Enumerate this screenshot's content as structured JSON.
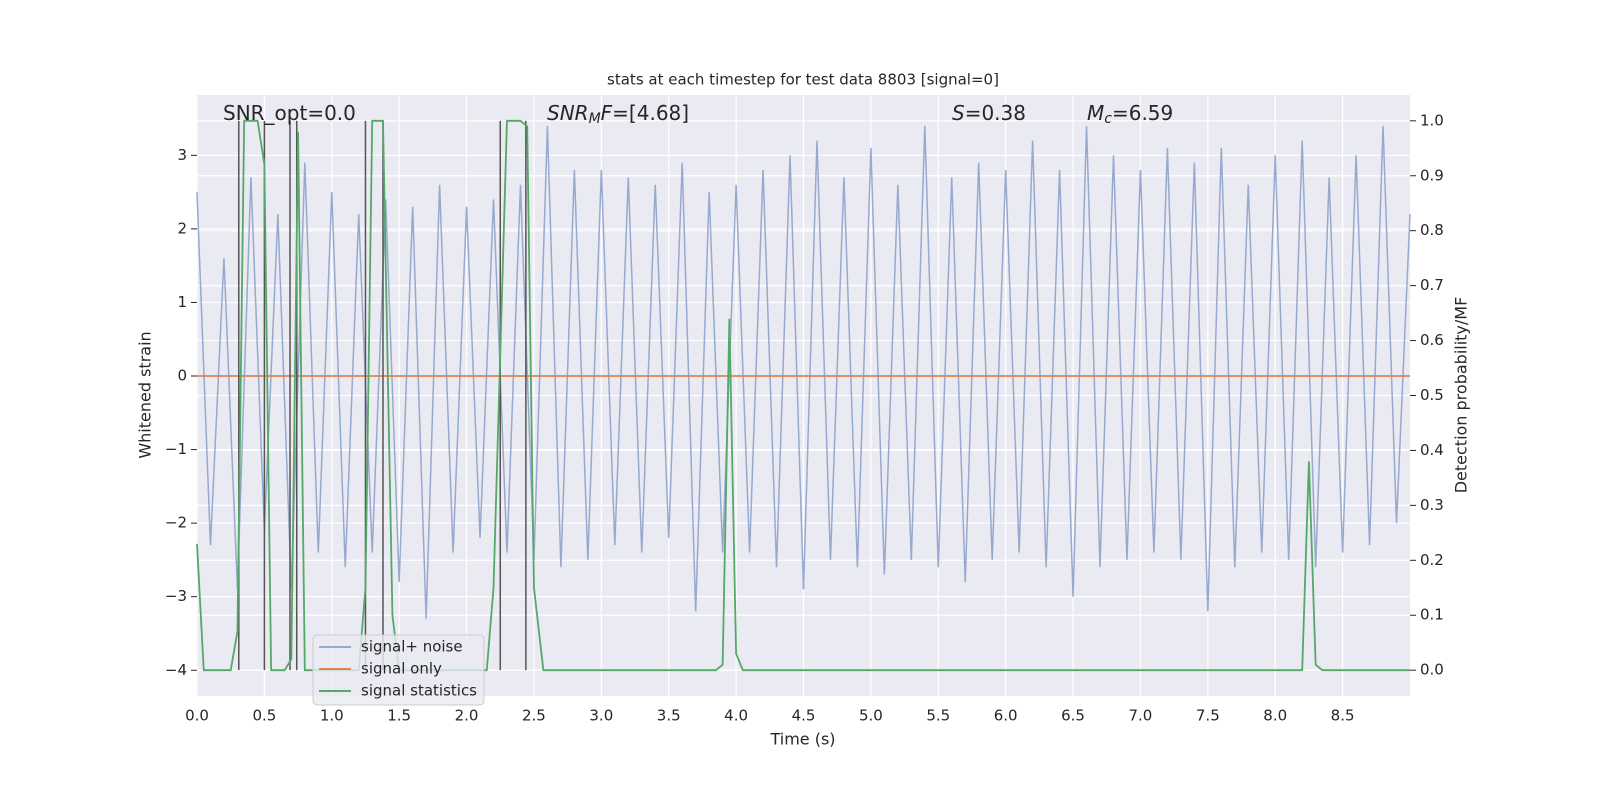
{
  "chart_data": {
    "type": "line",
    "title": "stats at each timestep for test data 8803 [signal=0]",
    "xlabel": "Time (s)",
    "ylabel": "Whitened strain",
    "y2label": "Detection probability/MF",
    "background": "#eaeaf2",
    "grid": true,
    "legend": "lower left",
    "xlim": [
      0,
      9.0
    ],
    "ylim": [
      -4.35,
      3.82
    ],
    "y2lim": [
      -0.047,
      1.047
    ],
    "xticks": [
      {
        "value": 0,
        "label": "0.0"
      },
      {
        "value": 0.5,
        "label": "0.5"
      },
      {
        "value": 1,
        "label": "1.0"
      },
      {
        "value": 1.5,
        "label": "1.5"
      },
      {
        "value": 2,
        "label": "2.0"
      },
      {
        "value": 2.5,
        "label": "2.5"
      },
      {
        "value": 3,
        "label": "3.0"
      },
      {
        "value": 3.5,
        "label": "3.5"
      },
      {
        "value": 4,
        "label": "4.0"
      },
      {
        "value": 4.5,
        "label": "4.5"
      },
      {
        "value": 5,
        "label": "5.0"
      },
      {
        "value": 5.5,
        "label": "5.5"
      },
      {
        "value": 6,
        "label": "6.0"
      },
      {
        "value": 6.5,
        "label": "6.5"
      },
      {
        "value": 7,
        "label": "7.0"
      },
      {
        "value": 7.5,
        "label": "7.5"
      },
      {
        "value": 8,
        "label": "8.0"
      },
      {
        "value": 8.5,
        "label": "8.5"
      }
    ],
    "yticks": [
      {
        "value": -4,
        "label": "−4"
      },
      {
        "value": -3,
        "label": "−3"
      },
      {
        "value": -2,
        "label": "−2"
      },
      {
        "value": -1,
        "label": "−1"
      },
      0,
      1,
      2,
      3
    ],
    "y2ticks": [
      {
        "value": 0,
        "label": "0.0"
      },
      {
        "value": 0.1,
        "label": "0.1"
      },
      {
        "value": 0.2,
        "label": "0.2"
      },
      {
        "value": 0.3,
        "label": "0.3"
      },
      {
        "value": 0.4,
        "label": "0.4"
      },
      {
        "value": 0.5,
        "label": "0.5"
      },
      {
        "value": 0.6,
        "label": "0.6"
      },
      {
        "value": 0.7,
        "label": "0.7"
      },
      {
        "value": 0.8,
        "label": "0.8"
      },
      {
        "value": 0.9,
        "label": "0.9"
      },
      {
        "value": 1,
        "label": "1.0"
      }
    ],
    "annotations": [
      [
        {
          "text": "SNR_opt=0.0",
          "style": "normal"
        }
      ],
      [
        {
          "text": "SNR",
          "style": "italic"
        },
        {
          "text": "M",
          "style": "sub"
        },
        {
          "text": "F",
          "style": "italic"
        },
        {
          "text": "=[4.68]",
          "style": "normal"
        }
      ],
      [
        {
          "text": "S",
          "style": "italic"
        },
        {
          "text": "=0.38",
          "style": "normal"
        }
      ],
      [
        {
          "text": "M",
          "style": "italic"
        },
        {
          "text": "c",
          "style": "sub"
        },
        {
          "text": "=6.59",
          "style": "normal"
        }
      ]
    ],
    "vlines": {
      "color": "#555555",
      "x": [
        0.31,
        0.5,
        0.69,
        0.74,
        1.25,
        1.38,
        2.25,
        2.44
      ],
      "ymin": 0,
      "ymax": 1
    },
    "series": [
      {
        "name": "signal+ noise",
        "color": "#98a9cf",
        "x": [
          0,
          0.1,
          0.2,
          0.3,
          0.4,
          0.5,
          0.6,
          0.7,
          0.8,
          0.9,
          1,
          1.1,
          1.2,
          1.3,
          1.4,
          1.5,
          1.6,
          1.7,
          1.8,
          1.9,
          2,
          2.1,
          2.2,
          2.3,
          2.4,
          2.5,
          2.6,
          2.7,
          2.8,
          2.9,
          3,
          3.1,
          3.2,
          3.3,
          3.4,
          3.5,
          3.6,
          3.7,
          3.8,
          3.9,
          4,
          4.1,
          4.2,
          4.3,
          4.4,
          4.5,
          4.6,
          4.7,
          4.8,
          4.9,
          5,
          5.1,
          5.2,
          5.3,
          5.4,
          5.5,
          5.6,
          5.7,
          5.8,
          5.9,
          6,
          6.1,
          6.2,
          6.3,
          6.4,
          6.5,
          6.6,
          6.7,
          6.8,
          6.9,
          7,
          7.1,
          7.2,
          7.3,
          7.4,
          7.5,
          7.6,
          7.7,
          7.8,
          7.9,
          8,
          8.1,
          8.2,
          8.3,
          8.4,
          8.5,
          8.6,
          8.7,
          8.8,
          8.9,
          9
        ],
        "values": [
          2.5,
          -2.3,
          1.6,
          -2.9,
          2.7,
          -2.1,
          2.2,
          -2.9,
          2.9,
          -2.4,
          2.5,
          -2.6,
          2.2,
          -2.4,
          2.4,
          -2.8,
          2.3,
          -3.3,
          2.6,
          -2.4,
          2.3,
          -2.2,
          2.4,
          -2.4,
          2.6,
          -2.5,
          3.4,
          -2.6,
          2.8,
          -2.5,
          2.8,
          -2.3,
          2.7,
          -2.4,
          2.6,
          -2.2,
          2.9,
          -3.2,
          2.5,
          -2.4,
          2.6,
          -2.4,
          2.8,
          -2.6,
          3.0,
          -2.9,
          3.2,
          -2.5,
          2.7,
          -2.6,
          3.1,
          -2.7,
          2.6,
          -2.5,
          3.4,
          -2.6,
          2.7,
          -2.8,
          2.9,
          -2.5,
          2.8,
          -2.4,
          3.2,
          -2.6,
          2.8,
          -3.0,
          3.4,
          -2.6,
          3.0,
          -2.5,
          2.8,
          -2.4,
          3.1,
          -2.5,
          2.9,
          -3.2,
          3.1,
          -2.6,
          2.6,
          -2.4,
          3.0,
          -2.5,
          3.2,
          -2.6,
          2.7,
          -2.4,
          3.0,
          -2.3,
          3.4,
          -2.0,
          2.2
        ]
      },
      {
        "name": "signal only",
        "color": "#dd8452",
        "x": [
          0,
          9
        ],
        "values": [
          0,
          0
        ]
      },
      {
        "name": "signal statistics",
        "color": "#55a868",
        "axis": "y2",
        "x": [
          0,
          0.05,
          0.25,
          0.3,
          0.35,
          0.45,
          0.5,
          0.55,
          0.65,
          0.7,
          0.75,
          0.8,
          0.9,
          1.2,
          1.25,
          1.3,
          1.38,
          1.45,
          1.5,
          2.15,
          2.2,
          2.3,
          2.4,
          2.45,
          2.5,
          2.57,
          3.85,
          3.9,
          3.95,
          4.0,
          4.05,
          4.15,
          8.2,
          8.25,
          8.3,
          8.35,
          9
        ],
        "values": [
          0.23,
          0,
          0,
          0.07,
          1.0,
          1.0,
          0.92,
          0,
          0,
          0.02,
          0.98,
          0,
          0,
          0,
          0.15,
          1.0,
          1.0,
          0.1,
          0,
          0,
          0.15,
          1.0,
          1.0,
          0.99,
          0.15,
          0,
          0,
          0.01,
          0.64,
          0.03,
          0,
          0,
          0,
          0.38,
          0.01,
          0,
          0
        ]
      }
    ]
  }
}
